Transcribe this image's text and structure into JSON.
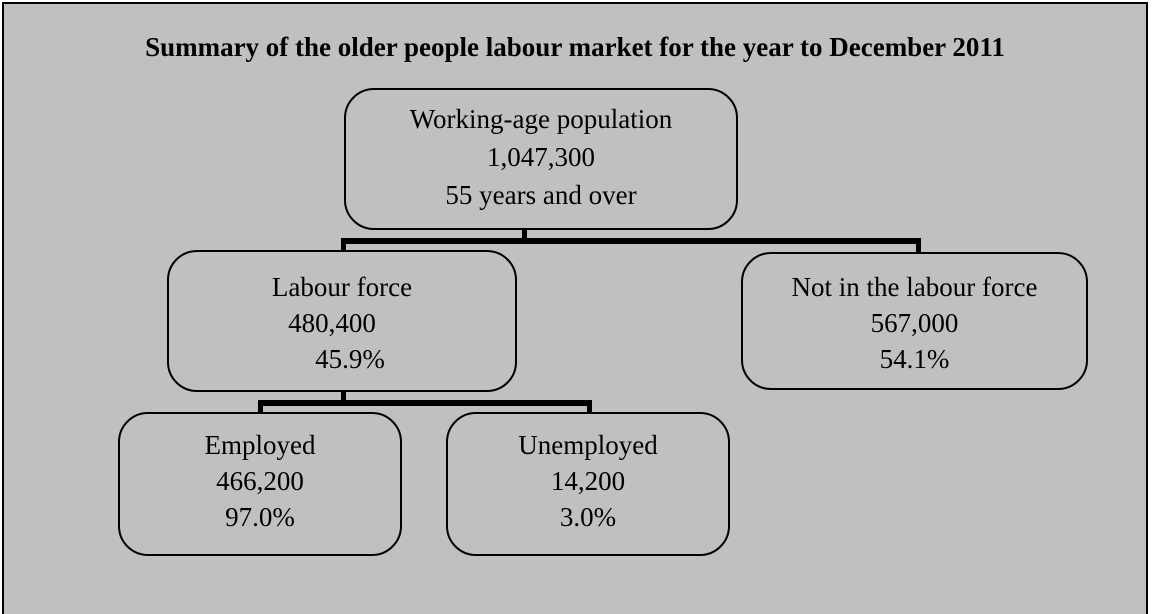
{
  "title": "Summary of the older people labour market for the year to December 2011",
  "nodes": {
    "population": {
      "label": "Working-age population",
      "value": "1,047,300",
      "note": "55 years and over"
    },
    "labour_force": {
      "label": "Labour force",
      "value": "480,400",
      "percent": "45.9%"
    },
    "not_in_labour_force": {
      "label": "Not in the labour force",
      "value": "567,000",
      "percent": "54.1%"
    },
    "employed": {
      "label": "Employed",
      "value": "466,200",
      "percent": "97.0%"
    },
    "unemployed": {
      "label": "Unemployed",
      "value": "14,200",
      "percent": "3.0%"
    }
  },
  "colors": {
    "background": "#c0c0c0",
    "border": "#000000",
    "text": "#000000"
  }
}
